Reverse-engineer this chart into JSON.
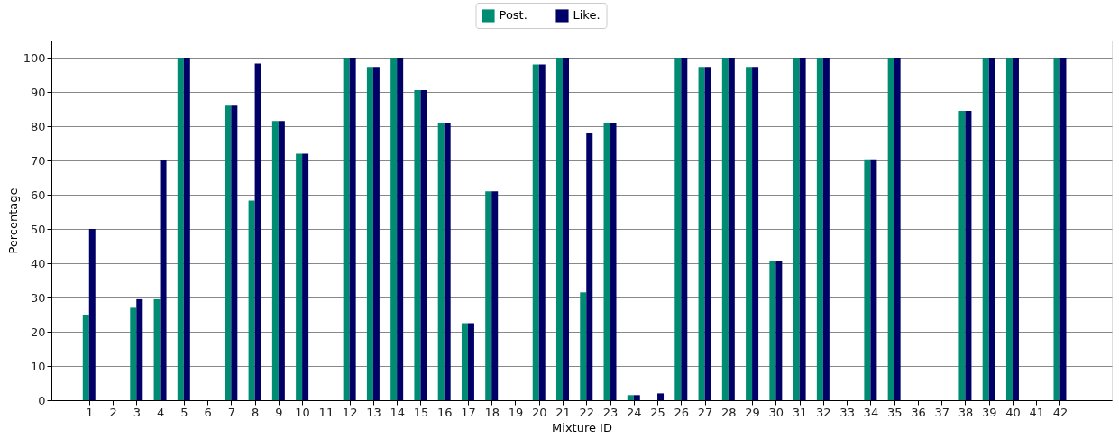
{
  "chart_data": {
    "type": "bar",
    "xlabel": "Mixture ID",
    "ylabel": "Percentage",
    "x": [
      1,
      2,
      3,
      4,
      5,
      6,
      7,
      8,
      9,
      10,
      11,
      12,
      13,
      14,
      15,
      16,
      17,
      18,
      19,
      20,
      21,
      22,
      23,
      24,
      25,
      26,
      27,
      28,
      29,
      30,
      31,
      32,
      33,
      34,
      35,
      36,
      37,
      38,
      39,
      40,
      41,
      42
    ],
    "series": [
      {
        "name": "Post.",
        "color": "#008c73",
        "values": [
          25,
          0,
          27,
          29.5,
          100,
          0,
          86,
          58.3,
          81.5,
          72,
          0,
          100,
          97.3,
          100,
          90.5,
          81,
          22.5,
          61,
          0,
          98,
          100,
          31.5,
          81,
          1.5,
          0,
          100,
          97.3,
          100,
          97.3,
          40.5,
          100,
          100,
          0,
          70.3,
          100,
          0,
          0,
          84.5,
          100,
          100,
          0,
          100
        ]
      },
      {
        "name": "Like.",
        "color": "#000066",
        "values": [
          50,
          0,
          29.5,
          70,
          100,
          0,
          86,
          98.3,
          81.5,
          72,
          0,
          100,
          97.3,
          100,
          90.5,
          81,
          22.5,
          61,
          0,
          98,
          100,
          78,
          81,
          1.5,
          2,
          100,
          97.3,
          100,
          97.3,
          40.5,
          100,
          100,
          0,
          70.3,
          100,
          0,
          0,
          84.5,
          100,
          100,
          0,
          100
        ]
      }
    ],
    "xlim": [
      -0.4,
      44
    ],
    "xticks": [
      1,
      2,
      3,
      4,
      5,
      6,
      7,
      8,
      9,
      10,
      11,
      12,
      13,
      14,
      15,
      16,
      17,
      18,
      19,
      20,
      21,
      22,
      23,
      24,
      25,
      26,
      27,
      28,
      29,
      30,
      31,
      32,
      33,
      34,
      35,
      36,
      37,
      38,
      39,
      40,
      41,
      42
    ],
    "ylim": [
      0,
      105
    ],
    "yticks": [
      0,
      10,
      20,
      30,
      40,
      50,
      60,
      70,
      80,
      90,
      100
    ],
    "grid": "y",
    "legend": "top"
  }
}
